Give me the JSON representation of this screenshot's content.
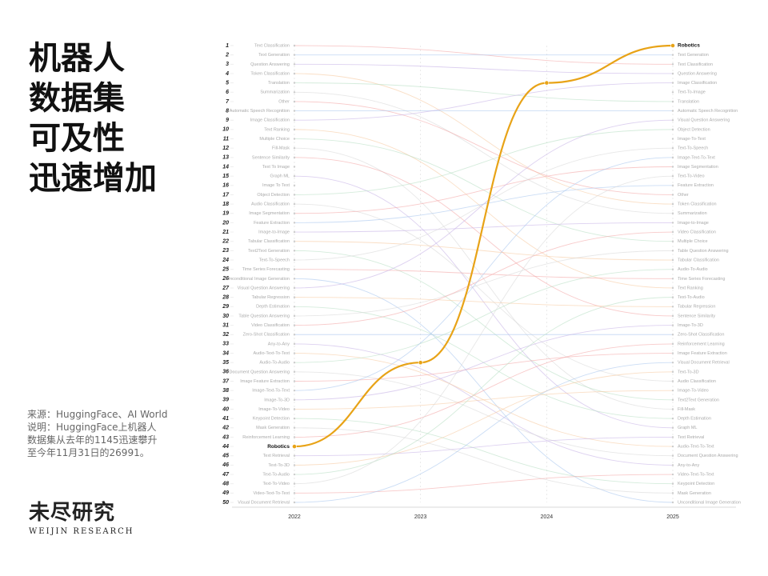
{
  "headline": [
    "机器人",
    "数据集",
    "可及性",
    "迅速增加"
  ],
  "note": [
    "来源：HuggingFace、AI World",
    "说明：HuggingFace上机器人",
    "数据集从去年的1145迅速攀升",
    "至今年11月31日的26991。"
  ],
  "logo": {
    "name": "未尽研究",
    "subtitle": "WEIJIN RESEARCH"
  },
  "chart_data": {
    "type": "bump",
    "categories": [
      "2022",
      "2023",
      "2024",
      "2025"
    ],
    "ylim": [
      1,
      50
    ],
    "y_reversed": true,
    "yticks": [
      1,
      2,
      3,
      4,
      5,
      6,
      7,
      8,
      9,
      10,
      11,
      12,
      13,
      14,
      15,
      16,
      17,
      18,
      19,
      20,
      21,
      22,
      23,
      24,
      25,
      26,
      27,
      28,
      29,
      30,
      31,
      32,
      33,
      34,
      35,
      36,
      37,
      38,
      39,
      40,
      41,
      42,
      43,
      44,
      45,
      46,
      47,
      48,
      49,
      50
    ],
    "labels_start": [
      "Text Classification",
      "Text Generation",
      "Question Answering",
      "Token Classification",
      "Translation",
      "Summarization",
      "Other",
      "Automatic Speech Recognition",
      "Image Classification",
      "Text Ranking",
      "Multiple Choice",
      "Fill-Mask",
      "Sentence Similarity",
      "Text To Image",
      "Graph ML",
      "Image To Text",
      "Object Detection",
      "Audio Classification",
      "Image Segmentation",
      "Feature Extraction",
      "Image-to-Image",
      "Tabular Classification",
      "Text2Text Generation",
      "Text-To-Speech",
      "Time Series Forecasting",
      "Unconditional Image Generation",
      "Visual Question Answering",
      "Tabular Regression",
      "Depth Estimation",
      "Table Question Answering",
      "Video Classification",
      "Zero-Shot Classification",
      "Any-to-Any",
      "Audio-Text-To-Text",
      "Audio-To-Audio",
      "Document Question Answering",
      "Image Feature Extraction",
      "Image-Text-To-Text",
      "Image-To-3D",
      "Image-To-Video",
      "Keypoint Detection",
      "Mask Generation",
      "Reinforcement Learning",
      "Robotics",
      "Text Retrieval",
      "Text-To-3D",
      "Text-To-Audio",
      "Text-To-Video",
      "Video-Text-To-Text",
      "Visual Document Retrieval"
    ],
    "labels_end": [
      "Robotics",
      "Text Generation",
      "Text Classification",
      "Question Answering",
      "Image Classification",
      "Text-To-Image",
      "Translation",
      "Automatic Speech Recognition",
      "Visual Question Answering",
      "Object Detection",
      "Image-To-Text",
      "Text-To-Speech",
      "Image-Text-To-Text",
      "Image Segmentation",
      "Text-To-Video",
      "Feature Extraction",
      "Other",
      "Token Classification",
      "Summarization",
      "Image-to-Image",
      "Video Classification",
      "Multiple Choice",
      "Table Question Answering",
      "Tabular Classification",
      "Audio-To-Audio",
      "Time Series Forecasting",
      "Text Ranking",
      "Text-To-Audio",
      "Tabular Regression",
      "Sentence Similarity",
      "Image-To-3D",
      "Zero-Shot Classification",
      "Reinforcement Learning",
      "Image Feature Extraction",
      "Visual Document Retrieval",
      "Text-To-3D",
      "Audio Classification",
      "Image-To-Video",
      "Text2Text Generation",
      "Fill-Mask",
      "Depth Estimation",
      "Graph ML",
      "Text Retrieval",
      "Audio-Text-To-Text",
      "Document Question Answering",
      "Any-to-Any",
      "Video-Text-To-Text",
      "Keypoint Detection",
      "Mask Generation",
      "Unconditional Image Generation"
    ],
    "series": [
      {
        "name": "Robotics",
        "color": "#e8a317",
        "values": [
          44,
          35,
          5,
          1
        ]
      }
    ]
  }
}
